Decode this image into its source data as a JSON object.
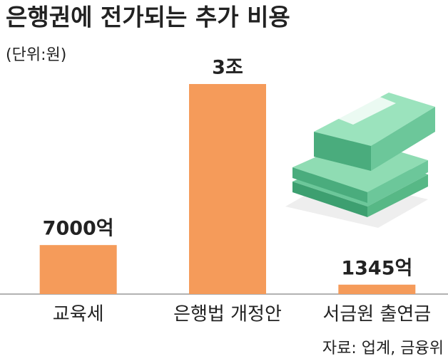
{
  "chart_data": {
    "type": "bar",
    "title": "은행권에 전가되는 추가 비용",
    "unit_note": "(단위:원)",
    "categories": [
      "교육세",
      "은행법 개정안",
      "서금원 출연금"
    ],
    "values": [
      700000000000,
      3000000000000,
      134500000000
    ],
    "value_labels": [
      "7000억",
      "3조",
      "1345억"
    ],
    "color": "#f59b5a",
    "source": "자료: 업계, 금융위"
  }
}
